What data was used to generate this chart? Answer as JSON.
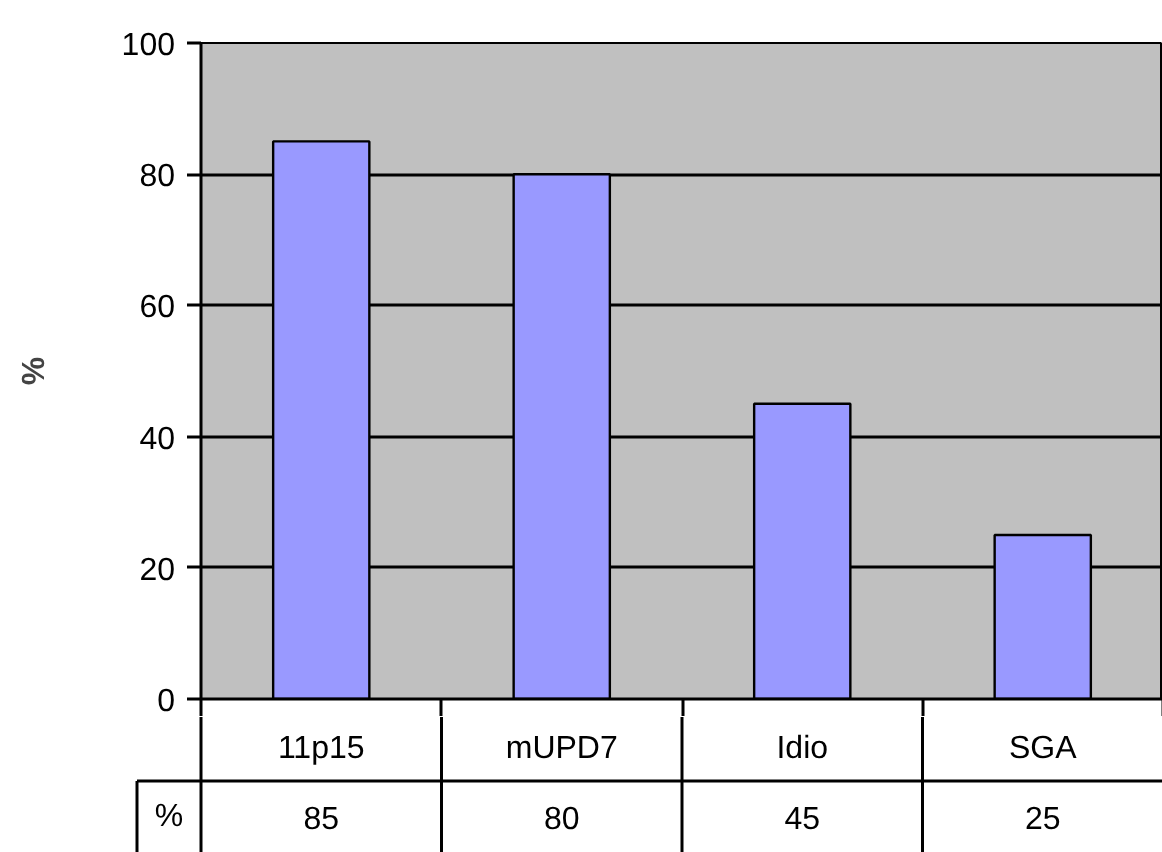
{
  "chart_data": {
    "type": "bar",
    "ylabel": "%",
    "categories": [
      "11p15",
      "mUPD7",
      "Idio",
      "SGA"
    ],
    "series": [
      {
        "name": "%",
        "color": "#9999ff",
        "values": [
          85,
          80,
          45,
          25
        ]
      }
    ],
    "ylim": [
      0,
      100
    ],
    "yticks": [
      0,
      20,
      40,
      60,
      80,
      100
    ],
    "grid": "y",
    "data_labels": true
  }
}
